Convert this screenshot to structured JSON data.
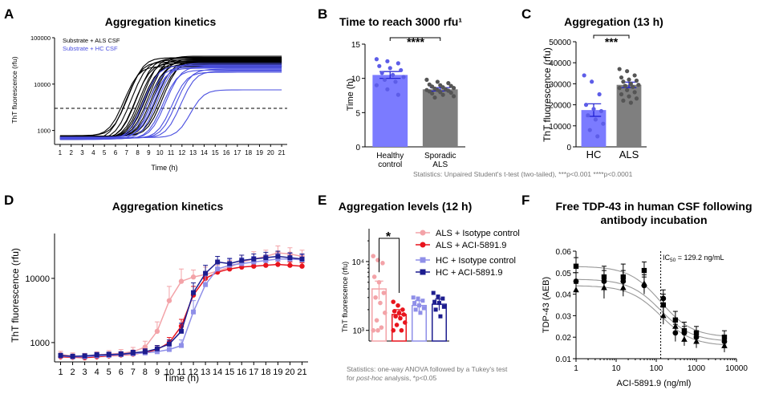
{
  "chart_data": [
    {
      "panel": "A",
      "type": "line",
      "title": "Aggregation kinetics",
      "xlabel": "Time (h)",
      "ylabel": "ThT fluorescence (rfu)",
      "yscale": "log",
      "ylim": [
        500,
        100000
      ],
      "xlim": [
        0.5,
        21.5
      ],
      "x_ticks": [
        "1",
        "2",
        "3",
        "4",
        "5",
        "6",
        "7",
        "8",
        "9",
        "10",
        "11",
        "12",
        "13",
        "14",
        "15",
        "16",
        "17",
        "18",
        "19",
        "20",
        "21"
      ],
      "y_ticks": [
        "1000",
        "10000",
        "100000"
      ],
      "legend": [
        "Substrate + ALS CSF",
        "Substrate + HC CSF"
      ],
      "threshold": 3000,
      "series": [
        {
          "name": "Substrate + ALS CSF",
          "color": "#000000",
          "curves": [
            {
              "mid": 8,
              "max": 30000
            },
            {
              "mid": 8.5,
              "max": 33000
            },
            {
              "mid": 8.8,
              "max": 28000
            },
            {
              "mid": 9,
              "max": 36000
            },
            {
              "mid": 9.2,
              "max": 31000
            },
            {
              "mid": 9.4,
              "max": 25000
            },
            {
              "mid": 9.5,
              "max": 38000
            },
            {
              "mid": 9.7,
              "max": 29000
            },
            {
              "mid": 9.8,
              "max": 34000
            },
            {
              "mid": 10,
              "max": 27000
            },
            {
              "mid": 10.1,
              "max": 40000
            },
            {
              "mid": 10.3,
              "max": 32000
            },
            {
              "mid": 10.5,
              "max": 35000
            },
            {
              "mid": 10.7,
              "max": 30000
            },
            {
              "mid": 11,
              "max": 28000
            },
            {
              "mid": 11.3,
              "max": 33000
            },
            {
              "mid": 7.7,
              "max": 24000
            },
            {
              "mid": 8.2,
              "max": 37000
            }
          ]
        },
        {
          "name": "Substrate + HC CSF",
          "color": "#4a4fe0",
          "curves": [
            {
              "mid": 9.5,
              "max": 25000
            },
            {
              "mid": 10.2,
              "max": 22000
            },
            {
              "mid": 10.8,
              "max": 28000
            },
            {
              "mid": 11.2,
              "max": 20000
            },
            {
              "mid": 11.5,
              "max": 24000
            },
            {
              "mid": 12,
              "max": 18000
            },
            {
              "mid": 12.4,
              "max": 21000
            },
            {
              "mid": 12.8,
              "max": 19000
            },
            {
              "mid": 13.4,
              "max": 7500
            },
            {
              "mid": 9.9,
              "max": 23000
            },
            {
              "mid": 10.5,
              "max": 26000
            }
          ]
        }
      ]
    },
    {
      "panel": "B",
      "type": "bar",
      "title": "Time to reach 3000 rfu¹",
      "ylabel": "Time (h)",
      "ylim": [
        0,
        15
      ],
      "y_ticks": [
        "0",
        "5",
        "10",
        "15"
      ],
      "categories": [
        "Healthy control",
        "Sporadic ALS"
      ],
      "values": [
        10.5,
        8.4
      ],
      "errors": [
        0.5,
        0.25
      ],
      "colors": [
        "#7b7bff",
        "#7f7f7f"
      ],
      "points": [
        [
          12.8,
          12.5,
          12.2,
          11.8,
          11.5,
          11.2,
          10.8,
          10.5,
          10.2,
          9.8,
          9.5,
          9,
          8.4,
          7.6
        ],
        [
          9.8,
          9.5,
          9.3,
          9.1,
          9,
          8.9,
          8.8,
          8.7,
          8.6,
          8.5,
          8.4,
          8.3,
          8.3,
          8.2,
          8.1,
          8,
          7.9,
          7.8,
          7.6,
          7.4,
          7.2
        ]
      ],
      "significance": "****",
      "statistics": "Statistics: Unpaired Student's t-test (two-tailed), ***p<0.001 ****p<0.0001"
    },
    {
      "panel": "C",
      "type": "bar",
      "title": "Aggregation (13 h)",
      "ylabel": "ThT fluorescence (rfu)",
      "ylim": [
        0,
        50000
      ],
      "y_ticks": [
        "0",
        "10000",
        "20000",
        "30000",
        "40000",
        "50000"
      ],
      "categories": [
        "HC",
        "ALS"
      ],
      "values": [
        17500,
        29500
      ],
      "errors": [
        3000,
        1300
      ],
      "colors": [
        "#7b7bff",
        "#7f7f7f"
      ],
      "points": [
        [
          34000,
          31000,
          25000,
          20000,
          18000,
          17000,
          15000,
          13000,
          11000,
          8000,
          5000
        ],
        [
          37000,
          36000,
          34000,
          33000,
          32000,
          31500,
          31000,
          30000,
          29500,
          29000,
          28500,
          28000,
          27000,
          26000,
          25000,
          24000,
          23000,
          22000,
          21000
        ]
      ],
      "significance": "***"
    },
    {
      "panel": "D",
      "type": "line",
      "title": "Aggregation kinetics",
      "xlabel": "Time (h)",
      "ylabel": "ThT fluorescence (rfu)",
      "yscale": "log",
      "ylim": [
        500,
        50000
      ],
      "xlim": [
        0.5,
        21.5
      ],
      "x_ticks": [
        "1",
        "2",
        "3",
        "4",
        "5",
        "6",
        "7",
        "8",
        "9",
        "10",
        "11",
        "12",
        "13",
        "14",
        "15",
        "16",
        "17",
        "18",
        "19",
        "20",
        "21"
      ],
      "y_ticks": [
        "1000",
        "10000"
      ],
      "x": [
        1,
        2,
        3,
        4,
        5,
        6,
        7,
        8,
        9,
        10,
        11,
        12,
        13,
        14,
        15,
        16,
        17,
        18,
        19,
        20,
        21
      ],
      "series": [
        {
          "name": "ALS + Isotype control",
          "color": "#f3a3a8",
          "values": [
            650,
            620,
            610,
            640,
            660,
            680,
            720,
            850,
            1500,
            4500,
            9000,
            10500,
            11500,
            13000,
            15000,
            18000,
            20000,
            22000,
            25000,
            24000,
            22000
          ],
          "errors": [
            80,
            70,
            70,
            80,
            90,
            100,
            120,
            200,
            600,
            3000,
            5000,
            3000,
            3500,
            3000,
            4000,
            5000,
            6000,
            5500,
            7000,
            6000,
            5500
          ]
        },
        {
          "name": "ALS + ACI-5891.9",
          "color": "#e8141d",
          "values": [
            600,
            590,
            580,
            600,
            620,
            640,
            660,
            700,
            780,
            1000,
            1800,
            5500,
            10000,
            12500,
            14000,
            15000,
            15500,
            16000,
            16500,
            16000,
            15500
          ],
          "errors": [
            60,
            60,
            60,
            60,
            70,
            70,
            80,
            90,
            120,
            200,
            500,
            2000,
            2500,
            2000,
            2000,
            2200,
            2000,
            2200,
            2000,
            2000,
            2000
          ]
        },
        {
          "name": "HC + Isotype control",
          "color": "#8f8fe8",
          "values": [
            620,
            600,
            600,
            620,
            630,
            650,
            670,
            690,
            720,
            780,
            900,
            3000,
            8000,
            14000,
            16000,
            17000,
            18000,
            19000,
            20000,
            20000,
            19500
          ],
          "errors": [
            50,
            50,
            50,
            60,
            60,
            60,
            70,
            70,
            80,
            100,
            200,
            1500,
            3000,
            4000,
            4000,
            4000,
            4000,
            4500,
            4500,
            4500,
            4000
          ]
        },
        {
          "name": "HC + ACI-5891.9",
          "color": "#1d1d8f",
          "values": [
            630,
            610,
            620,
            640,
            650,
            660,
            690,
            720,
            800,
            950,
            1500,
            6000,
            12000,
            18000,
            17000,
            19000,
            20000,
            21000,
            22000,
            21000,
            20000
          ],
          "errors": [
            50,
            50,
            50,
            60,
            60,
            60,
            70,
            80,
            100,
            150,
            500,
            2500,
            4000,
            4000,
            3500,
            4000,
            4000,
            4500,
            4500,
            4000,
            4000
          ]
        }
      ]
    },
    {
      "panel": "E",
      "type": "bar",
      "title": "Aggregation levels (12 h)",
      "ylabel": "ThT fluorescence (rfu)",
      "yscale": "log",
      "ylim": [
        700,
        30000
      ],
      "y_ticks": [
        "10³",
        "10⁴"
      ],
      "categories": [
        "ALS + Isotype control",
        "ALS + ACI-5891.9",
        "HC + Isotype control",
        "HC + ACI-5891.9"
      ],
      "values": [
        4000,
        1700,
        2300,
        2400
      ],
      "errors": [
        1200,
        300,
        400,
        450
      ],
      "colors": [
        "#f3a3a8",
        "#e8141d",
        "#8f8fe8",
        "#1d1d8f"
      ],
      "points": [
        [
          12000,
          10500,
          9500,
          6000,
          5000,
          3500,
          3000,
          2500,
          1800,
          1400,
          1100,
          1000,
          1000
        ],
        [
          2600,
          2300,
          2000,
          1900,
          1800,
          1700,
          1600,
          1500,
          1300,
          1200,
          1000,
          1000
        ],
        [
          3000,
          2900,
          2700,
          2500,
          2300,
          2100,
          2000,
          1800
        ],
        [
          3500,
          3100,
          2900,
          2600,
          2500,
          2200,
          2000,
          1600
        ]
      ],
      "significance": "*",
      "statistics_line1": "Statistics: one-way ANOVA followed by a Tukey's test",
      "statistics_line2_prefix": "for ",
      "statistics_line2_italic": "post-hoc",
      "statistics_line2_suffix": " analysis, *p<0.05"
    },
    {
      "panel": "F",
      "type": "scatter",
      "title_line1": "Free TDP-43 in human CSF following",
      "title_line2": "antibody incubation",
      "xlabel": "ACI-5891.9 (ng/ml)",
      "ylabel": "TDP-43 (AEB)",
      "xscale": "log",
      "yscale": "log",
      "xlim": [
        1,
        10000
      ],
      "ylim": [
        0.01,
        0.06
      ],
      "x_ticks": [
        "1",
        "10",
        "100",
        "1000",
        "10000"
      ],
      "y_ticks": [
        "0.01",
        "0.02",
        "0.03",
        "0.04",
        "0.05",
        "0.06"
      ],
      "ic50_value": 129.2,
      "ic50_prefix": "IC",
      "ic50_sub": "50",
      "ic50_suffix": " = 129.2 ng/mL",
      "x": [
        1,
        5,
        15,
        50,
        150,
        300,
        500,
        1000,
        5000
      ],
      "series": [
        {
          "name": "square",
          "marker": "square",
          "values": [
            0.053,
            0.048,
            0.048,
            0.051,
            0.035,
            0.028,
            0.023,
            0.022,
            0.02
          ],
          "errors": [
            0.004,
            0.005,
            0.006,
            0.004,
            0.005,
            0.004,
            0.004,
            0.003,
            0.003
          ]
        },
        {
          "name": "circle",
          "marker": "circle",
          "values": [
            0.046,
            0.046,
            0.046,
            0.044,
            0.038,
            0.022,
            0.022,
            0.02,
            0.018
          ],
          "errors": [
            0.004,
            0.005,
            0.005,
            0.004,
            0.004,
            0.004,
            0.003,
            0.003,
            0.003
          ]
        },
        {
          "name": "triangle",
          "marker": "triangle",
          "values": [
            0.042,
            0.043,
            0.043,
            0.045,
            0.03,
            0.025,
            0.019,
            0.018,
            0.016
          ],
          "errors": [
            0.003,
            0.005,
            0.004,
            0.004,
            0.004,
            0.003,
            0.003,
            0.003,
            0.003
          ]
        }
      ]
    }
  ],
  "labels": {
    "E_legend": [
      "ALS + Isotype control",
      "ALS + ACI-5891.9",
      "HC + Isotype control",
      "HC + ACI-5891.9"
    ]
  }
}
